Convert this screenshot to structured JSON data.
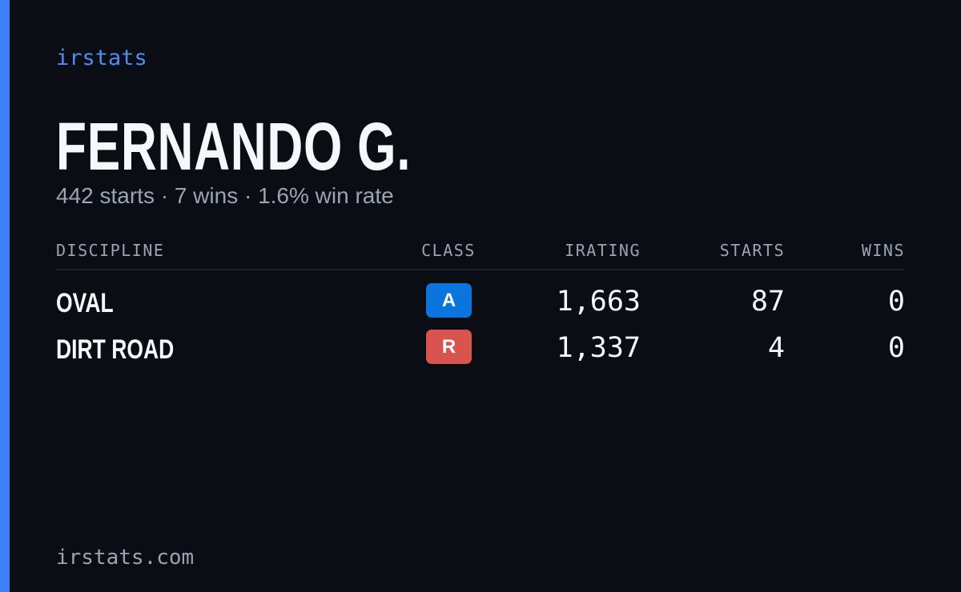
{
  "brand": "irstats",
  "name": "FERNANDO G.",
  "summary": "442 starts · 7 wins · 1.6% win rate",
  "table": {
    "headers": [
      "DISCIPLINE",
      "CLASS",
      "IRATING",
      "STARTS",
      "WINS"
    ],
    "rows": [
      {
        "discipline": "OVAL",
        "class": "A",
        "class_color": "#0b74de",
        "irating": "1,663",
        "starts": "87",
        "wins": "0"
      },
      {
        "discipline": "DIRT ROAD",
        "class": "R",
        "class_color": "#d9534f",
        "irating": "1,337",
        "starts": "4",
        "wins": "0"
      }
    ]
  },
  "footer": "irstats.com"
}
